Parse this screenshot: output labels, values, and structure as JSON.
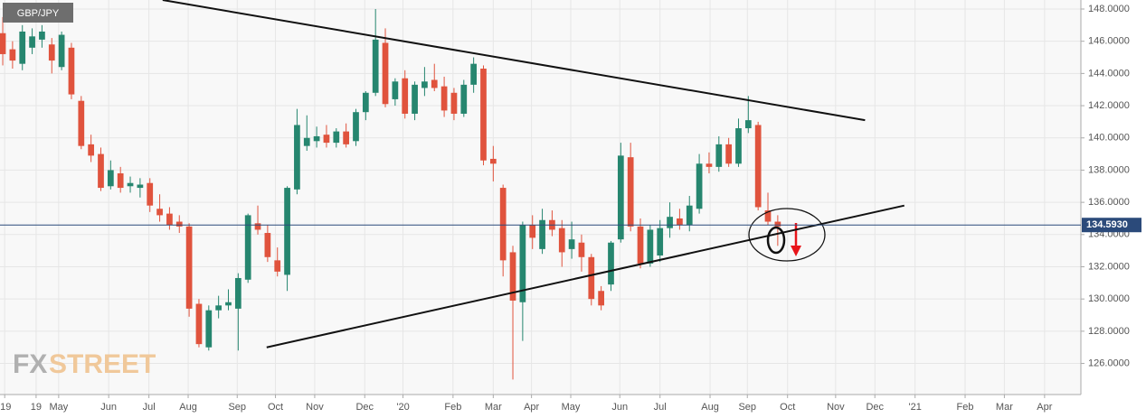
{
  "chart_data": {
    "type": "candlestick",
    "title": "GBP/JPY",
    "watermark": [
      "FX",
      "STREET"
    ],
    "up_color": "#26866f",
    "down_color": "#e0533d",
    "ohlc": [
      [
        146.5,
        147.5,
        144.5,
        145.2
      ],
      [
        145.5,
        146,
        144.3,
        144.8
      ],
      [
        144.6,
        147,
        144.2,
        146.6
      ],
      [
        145.6,
        146.8,
        145.2,
        146.3
      ],
      [
        146.1,
        147,
        145.6,
        146.6
      ],
      [
        145.8,
        146.2,
        144,
        144.8
      ],
      [
        144.4,
        146.6,
        144.2,
        146.4
      ],
      [
        145.6,
        145.9,
        142.4,
        142.7
      ],
      [
        142.3,
        142.6,
        139.3,
        139.5
      ],
      [
        139.6,
        140.2,
        138.5,
        138.9
      ],
      [
        139,
        139.4,
        136.7,
        136.9
      ],
      [
        137,
        138.6,
        136.8,
        138
      ],
      [
        137.8,
        138.2,
        136.6,
        136.9
      ],
      [
        137,
        137.6,
        136.6,
        137.2
      ],
      [
        136.9,
        137.5,
        136.3,
        137.1
      ],
      [
        137.2,
        137.5,
        135.4,
        135.8
      ],
      [
        135.6,
        136.5,
        134.8,
        135.2
      ],
      [
        135.3,
        135.7,
        134.3,
        134.6
      ],
      [
        134.8,
        135.2,
        134.1,
        134.5
      ],
      [
        134.5,
        134.7,
        128.9,
        129.4
      ],
      [
        129.7,
        130,
        127,
        127.2
      ],
      [
        127,
        129.6,
        126.8,
        129.3
      ],
      [
        129.3,
        130.2,
        128.8,
        129.6
      ],
      [
        129.6,
        130.6,
        129.3,
        129.8
      ],
      [
        129.4,
        131.6,
        126.8,
        131.3
      ],
      [
        131.2,
        135.3,
        131,
        135.2
      ],
      [
        134.7,
        135.8,
        134,
        134.3
      ],
      [
        134.1,
        134.6,
        132.3,
        132.6
      ],
      [
        132.4,
        133.2,
        131.4,
        131.7
      ],
      [
        131.5,
        137,
        130.5,
        136.9
      ],
      [
        136.8,
        141.8,
        136.5,
        140.8
      ],
      [
        139.5,
        141.4,
        139.2,
        140
      ],
      [
        139.8,
        140.7,
        139.4,
        140.1
      ],
      [
        140.2,
        140.8,
        139.4,
        139.7
      ],
      [
        139.7,
        140.6,
        139.4,
        140.4
      ],
      [
        140.4,
        140.9,
        139.4,
        139.6
      ],
      [
        139.8,
        141.8,
        139.5,
        141.6
      ],
      [
        141.6,
        142.9,
        141.1,
        142.8
      ],
      [
        142.8,
        148,
        142.6,
        146.1
      ],
      [
        145.9,
        146.8,
        141.9,
        142.1
      ],
      [
        142.4,
        143.7,
        142,
        143.5
      ],
      [
        143.7,
        144.2,
        141.2,
        141.5
      ],
      [
        141.5,
        143.5,
        141.1,
        143.3
      ],
      [
        143.1,
        144.4,
        142.6,
        143.5
      ],
      [
        143.6,
        144.6,
        142.9,
        143.1
      ],
      [
        143.2,
        143.8,
        141.3,
        141.7
      ],
      [
        142.8,
        143.1,
        141.1,
        141.5
      ],
      [
        141.5,
        143.6,
        141.3,
        143.3
      ],
      [
        143.3,
        145,
        142.8,
        144.6
      ],
      [
        144.3,
        144.5,
        138.3,
        138.6
      ],
      [
        138.7,
        139.5,
        137.3,
        138.4
      ],
      [
        136.9,
        137.1,
        131.4,
        132.4
      ],
      [
        132.9,
        133.3,
        125,
        129.9
      ],
      [
        129.8,
        134.8,
        127.4,
        134.6
      ],
      [
        134.6,
        135.2,
        133.1,
        133.8
      ],
      [
        133.1,
        135.6,
        132.8,
        134.9
      ],
      [
        134.9,
        135.5,
        133.9,
        134.3
      ],
      [
        134.4,
        134.9,
        132,
        132.9
      ],
      [
        133.1,
        134.8,
        132.5,
        133.7
      ],
      [
        133.5,
        134,
        131.7,
        132.6
      ],
      [
        132.6,
        132.8,
        129.6,
        130
      ],
      [
        130.5,
        130.8,
        129.3,
        129.6
      ],
      [
        130.9,
        133.6,
        130.5,
        133.5
      ],
      [
        133.7,
        139.7,
        133.5,
        138.9
      ],
      [
        138.8,
        139.7,
        134.2,
        134.5
      ],
      [
        134.5,
        135,
        131.9,
        132.2
      ],
      [
        132.2,
        134.6,
        132,
        134.3
      ],
      [
        132.7,
        134.9,
        132.3,
        134.4
      ],
      [
        134.4,
        136,
        133.8,
        135.1
      ],
      [
        135,
        135.6,
        134.3,
        134.6
      ],
      [
        134.6,
        136.4,
        134.2,
        135.8
      ],
      [
        135.6,
        139,
        135.3,
        138.4
      ],
      [
        138.4,
        139.1,
        137.8,
        138.2
      ],
      [
        138.2,
        140.1,
        137.9,
        139.6
      ],
      [
        139.6,
        140,
        138.2,
        138.4
      ],
      [
        138.4,
        141.2,
        138.2,
        140.6
      ],
      [
        140.6,
        142.6,
        140.3,
        141.1
      ],
      [
        140.8,
        141,
        135.5,
        135.7
      ],
      [
        135.5,
        136.6,
        134.6,
        134.8
      ],
      [
        134.8,
        135.2,
        133.3,
        134.5
      ]
    ],
    "xlim": [
      -0.28,
      109.9
    ],
    "xticks": [
      {
        "value": 0.2,
        "label": "'19"
      },
      {
        "value": 3.4,
        "label": "19"
      },
      {
        "value": 5.7,
        "label": "May"
      },
      {
        "value": 10.8,
        "label": "Jun"
      },
      {
        "value": 14.9,
        "label": "Jul"
      },
      {
        "value": 18.9,
        "label": "Aug"
      },
      {
        "value": 23.9,
        "label": "Sep"
      },
      {
        "value": 27.8,
        "label": "Oct"
      },
      {
        "value": 31.8,
        "label": "Nov"
      },
      {
        "value": 36.9,
        "label": "Dec"
      },
      {
        "value": 40.8,
        "label": "'20"
      },
      {
        "value": 45.9,
        "label": "Feb"
      },
      {
        "value": 50,
        "label": "Mar"
      },
      {
        "value": 53.9,
        "label": "Apr"
      },
      {
        "value": 57.9,
        "label": "May"
      },
      {
        "value": 62.9,
        "label": "Jun"
      },
      {
        "value": 67,
        "label": "Jul"
      },
      {
        "value": 72.1,
        "label": "Aug"
      },
      {
        "value": 75.9,
        "label": "Sep"
      },
      {
        "value": 80,
        "label": "Oct"
      },
      {
        "value": 84.9,
        "label": "Nov"
      },
      {
        "value": 88.9,
        "label": "Dec"
      },
      {
        "value": 93,
        "label": "'21"
      },
      {
        "value": 98.1,
        "label": "Feb"
      },
      {
        "value": 102.1,
        "label": "Mar"
      },
      {
        "value": 106.2,
        "label": "Apr"
      }
    ],
    "ylim": [
      124.07,
      148.56
    ],
    "yticks": [
      {
        "value": 126,
        "label": "126.0000"
      },
      {
        "value": 128,
        "label": "128.0000"
      },
      {
        "value": 130,
        "label": "130.0000"
      },
      {
        "value": 132,
        "label": "132.0000"
      },
      {
        "value": 134,
        "label": "134.0000"
      },
      {
        "value": 136,
        "label": "136.0000"
      },
      {
        "value": 138,
        "label": "138.0000"
      },
      {
        "value": 140,
        "label": "140.0000"
      },
      {
        "value": 142,
        "label": "142.0000"
      },
      {
        "value": 144,
        "label": "144.0000"
      },
      {
        "value": 146,
        "label": "146.0000"
      },
      {
        "value": 148,
        "label": "148.0000"
      }
    ],
    "last_price": {
      "value": 134.593,
      "label": "134.5930"
    },
    "trendlines": [
      [
        16.3,
        148.56,
        87.9,
        141.1
      ],
      [
        26.9,
        127.0,
        91.9,
        135.8
      ]
    ],
    "grid": true
  }
}
